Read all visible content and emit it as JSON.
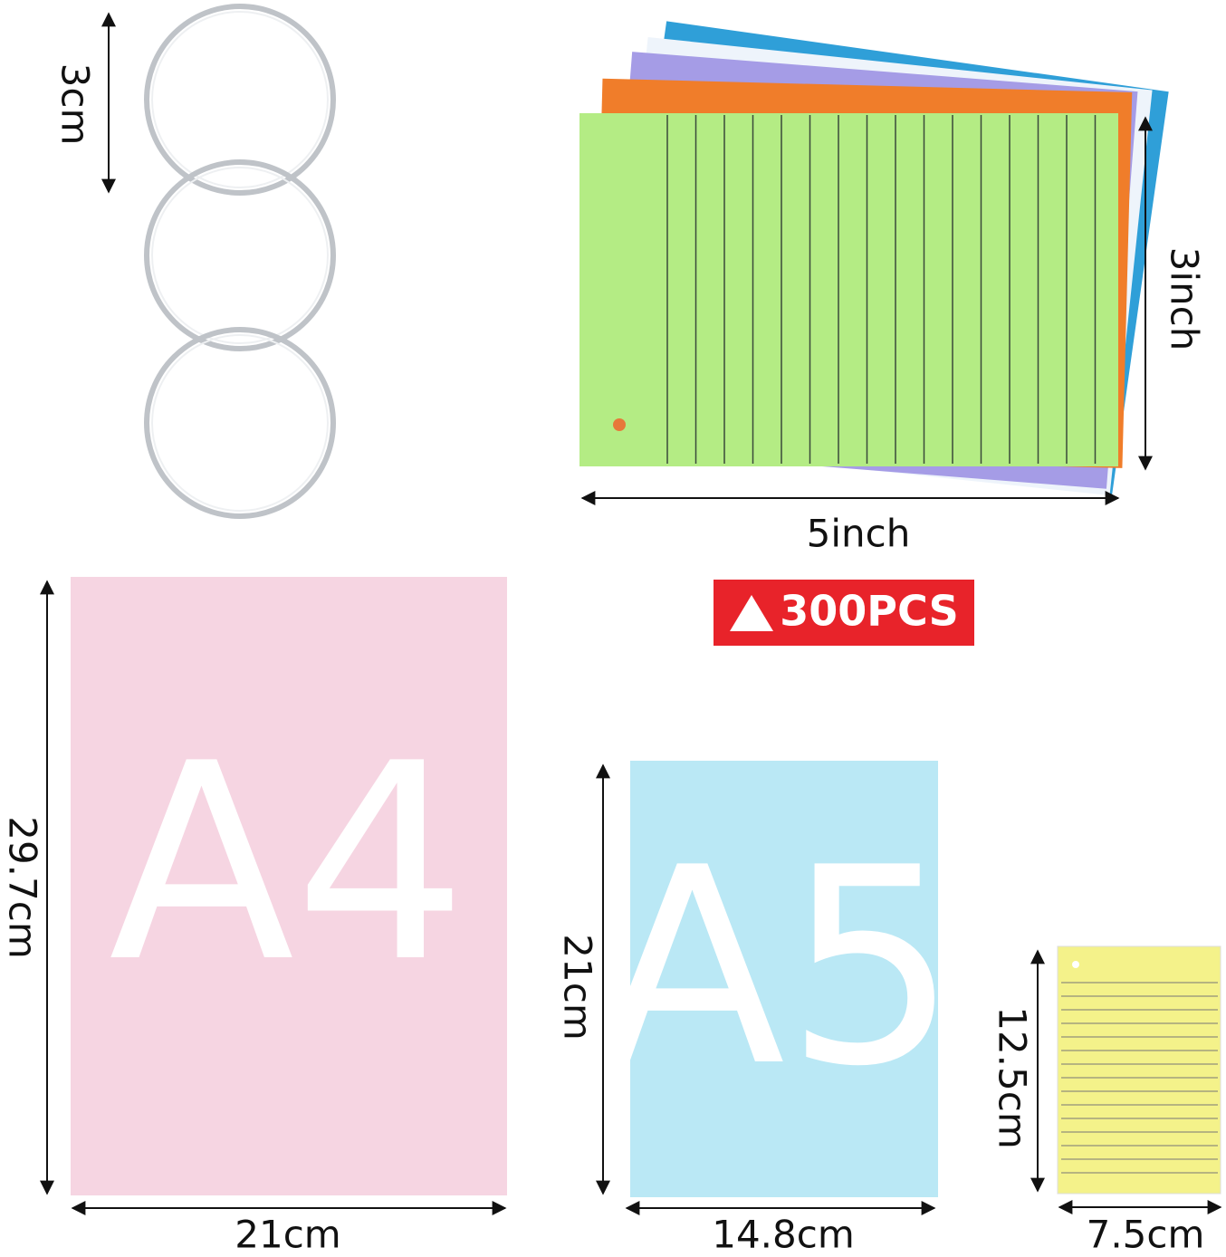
{
  "rings": {
    "height_label": "3cm"
  },
  "index_cards": {
    "height_label": "3inch",
    "width_label": "5inch",
    "count_label": "300PCS"
  },
  "a4": {
    "name": "A4",
    "height_label": "29.7cm",
    "width_label": "21cm"
  },
  "a5": {
    "name": "A5",
    "height_label": "21cm",
    "width_label": "14.8cm"
  },
  "small_card": {
    "height_label": "12.5cm",
    "width_label": "7.5cm"
  }
}
